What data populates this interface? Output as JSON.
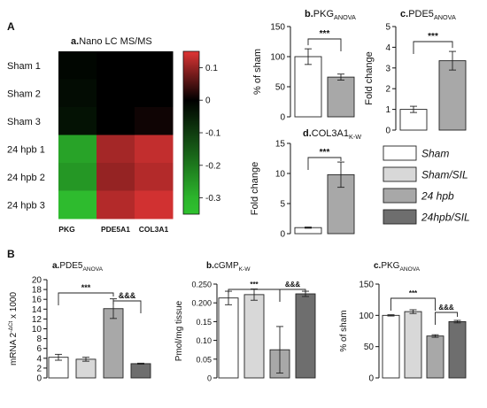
{
  "panel_labels": {
    "A": "A",
    "B": "B"
  },
  "chart_data": [
    {
      "id": "heatmap",
      "type": "heatmap",
      "title_prefix": "a.",
      "title_main": "Nano LC MS/MS",
      "rows": [
        "Sham 1",
        "Sham 2",
        "Sham 3",
        "24 hpb 1",
        "24 hpb 2",
        "24 hpb 3"
      ],
      "columns": [
        "PKG",
        "PDE5A1",
        "COL3A1"
      ],
      "values": [
        [
          -0.01,
          0.0,
          0.0
        ],
        [
          -0.02,
          0.0,
          0.0
        ],
        [
          -0.03,
          0.0,
          0.01
        ],
        [
          -0.27,
          0.11,
          0.13
        ],
        [
          -0.25,
          0.1,
          0.12
        ],
        [
          -0.31,
          0.12,
          0.14
        ]
      ],
      "colorbar": {
        "min": -0.35,
        "max": 0.15,
        "ticks": [
          0.1,
          0,
          -0.1,
          -0.2,
          -0.3
        ],
        "tick_labels": [
          "0.1",
          "0",
          "-0.1",
          "-0.2",
          "-0.3"
        ]
      },
      "colors": {
        "neg": "#2fc12f",
        "zero": "#000000",
        "pos": "#e03535"
      }
    },
    {
      "id": "pkg_top",
      "type": "bar",
      "title_prefix": "b.",
      "title_main": "PKG",
      "title_sub": "ANOVA",
      "ylabel": "% of sham",
      "ylim": [
        0,
        150
      ],
      "yticks": [
        0,
        50,
        100,
        150
      ],
      "values": [
        100,
        66
      ],
      "errors": [
        13,
        5
      ],
      "fills": [
        "#ffffff",
        "#a8a8a8"
      ],
      "sig": [
        {
          "from": 0,
          "to": 1,
          "label": "***"
        }
      ]
    },
    {
      "id": "pde5_top",
      "type": "bar",
      "title_prefix": "c.",
      "title_main": "PDE5",
      "title_sub": "ANOVA",
      "ylabel": "Fold change",
      "ylim": [
        0,
        5
      ],
      "yticks": [
        0,
        1,
        2,
        3,
        4,
        5
      ],
      "values": [
        1.0,
        3.35
      ],
      "errors": [
        0.15,
        0.45
      ],
      "fills": [
        "#ffffff",
        "#a8a8a8"
      ],
      "sig": [
        {
          "from": 0,
          "to": 1,
          "label": "***"
        }
      ]
    },
    {
      "id": "col3a1",
      "type": "bar",
      "title_prefix": "d.",
      "title_main": "COL3A1",
      "title_sub": "K-W",
      "ylabel": "Fold change",
      "ylim": [
        0,
        15
      ],
      "yticks": [
        0,
        5,
        10,
        15
      ],
      "values": [
        1.0,
        9.8
      ],
      "errors": [
        0.1,
        2.1
      ],
      "fills": [
        "#ffffff",
        "#a8a8a8"
      ],
      "sig": [
        {
          "from": 0,
          "to": 1,
          "label": "***"
        }
      ]
    },
    {
      "id": "b_pde5",
      "type": "bar",
      "title_prefix": "a.",
      "title_main": "PDE5",
      "title_sub": "ANOVA",
      "ylabel_main": "mRNA 2",
      "ylabel_sup": "-ΔCt",
      "ylabel_tail": "x 1000",
      "ylim": [
        0,
        20
      ],
      "yticks": [
        0,
        2,
        4,
        6,
        8,
        10,
        12,
        14,
        16,
        18,
        20
      ],
      "values": [
        4.2,
        3.8,
        14.1,
        2.9
      ],
      "errors": [
        0.6,
        0.4,
        2.0,
        0.1
      ],
      "fills": [
        "#ffffff",
        "#d8d8d8",
        "#a8a8a8",
        "#6e6e6e"
      ],
      "sig": [
        {
          "from": 0,
          "to": 2,
          "label": "***"
        },
        {
          "from": 2,
          "to": 3,
          "label": "&&&"
        }
      ]
    },
    {
      "id": "b_cgmp",
      "type": "bar",
      "title_prefix": "b.",
      "title_main": "cGMP",
      "title_sub": "K-W",
      "ylabel": "Pmol/mg tissue",
      "ylim": [
        0,
        0.25
      ],
      "yticks": [
        0,
        0.05,
        0.1,
        0.15,
        0.2,
        0.25
      ],
      "ytick_labels": [
        "0",
        "0.05",
        "0.10",
        "0.15",
        "0.200",
        "0.250"
      ],
      "values": [
        0.213,
        0.222,
        0.075,
        0.224
      ],
      "errors": [
        0.018,
        0.015,
        0.062,
        0.007
      ],
      "fills": [
        "#ffffff",
        "#d8d8d8",
        "#a8a8a8",
        "#6e6e6e"
      ],
      "sig": [
        {
          "from": 0,
          "to": 2,
          "label": "***"
        },
        {
          "from": 2,
          "to": 3,
          "label": "&&&"
        }
      ]
    },
    {
      "id": "b_pkg",
      "type": "bar",
      "title_prefix": "c.",
      "title_main": "PKG",
      "title_sub": "ANOVA",
      "ylabel": "% of sham",
      "ylim": [
        0,
        150
      ],
      "yticks": [
        0,
        50,
        100,
        150
      ],
      "values": [
        100,
        106,
        67,
        90
      ],
      "errors": [
        1,
        3,
        2,
        2
      ],
      "fills": [
        "#ffffff",
        "#d8d8d8",
        "#a8a8a8",
        "#6e6e6e"
      ],
      "sig": [
        {
          "from": 0,
          "to": 2,
          "label": "***"
        },
        {
          "from": 2,
          "to": 3,
          "label": "&&&"
        }
      ]
    }
  ],
  "legend": {
    "items": [
      {
        "label": "Sham",
        "fill": "#ffffff"
      },
      {
        "label": "Sham/SIL",
        "fill": "#d8d8d8"
      },
      {
        "label": "24 hpb",
        "fill": "#a8a8a8"
      },
      {
        "label": "24hpb/SIL",
        "fill": "#6e6e6e"
      }
    ]
  }
}
